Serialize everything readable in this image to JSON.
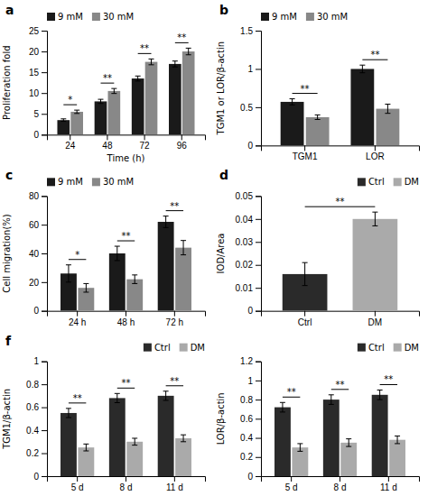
{
  "chart_data": [
    {
      "type": "bar",
      "title": "a",
      "xlabel": "Time (h)",
      "ylabel": "Proliferation fold",
      "categories": [
        "24",
        "48",
        "72",
        "96"
      ],
      "series": [
        {
          "name": "9 mM",
          "color": "#1a1a1a",
          "values": [
            3.5,
            8.0,
            13.5,
            17.0
          ],
          "errors": [
            0.3,
            0.5,
            0.6,
            0.7
          ]
        },
        {
          "name": "30 mM",
          "color": "#888888",
          "values": [
            5.5,
            10.5,
            17.5,
            20.0
          ],
          "errors": [
            0.4,
            0.6,
            0.7,
            0.8
          ]
        }
      ],
      "ylim": [
        0,
        25
      ],
      "yticks": [
        0,
        5,
        10,
        15,
        20,
        25
      ],
      "annotations": [
        "*",
        "**",
        "**",
        "**"
      ],
      "legend": "upper left"
    },
    {
      "type": "bar",
      "title": "b",
      "ylabel": "TGM1 or LOR/β-actin",
      "categories": [
        "TGM1",
        "LOR"
      ],
      "series": [
        {
          "name": "9 mM",
          "color": "#1a1a1a",
          "values": [
            0.57,
            1.0
          ],
          "errors": [
            0.04,
            0.05
          ]
        },
        {
          "name": "30 mM",
          "color": "#888888",
          "values": [
            0.37,
            0.48
          ],
          "errors": [
            0.03,
            0.06
          ]
        }
      ],
      "ylim": [
        0,
        1.5
      ],
      "yticks": [
        0,
        0.5,
        1,
        1.5
      ],
      "annotations": [
        "**",
        "**"
      ],
      "legend": "upper left"
    },
    {
      "type": "bar",
      "title": "c",
      "ylabel": "Cell migration(%)",
      "categories": [
        "24 h",
        "48 h",
        "72 h"
      ],
      "series": [
        {
          "name": "9 mM",
          "color": "#1a1a1a",
          "values": [
            26,
            40,
            62
          ],
          "errors": [
            6,
            5,
            4
          ]
        },
        {
          "name": "30 mM",
          "color": "#888888",
          "values": [
            16,
            22,
            44
          ],
          "errors": [
            3,
            3,
            5
          ]
        }
      ],
      "ylim": [
        0,
        80
      ],
      "yticks": [
        0,
        20,
        40,
        60,
        80
      ],
      "annotations": [
        "*",
        "**",
        "**"
      ],
      "legend": "upper left"
    },
    {
      "type": "bar",
      "title": "d",
      "ylabel": "IOD/Area",
      "categories": [
        "Ctrl",
        "DM"
      ],
      "values": [
        0.016,
        0.04
      ],
      "errors": [
        0.005,
        0.003
      ],
      "colors": [
        "#2a2a2a",
        "#aaaaaa"
      ],
      "ylim": [
        0,
        0.05
      ],
      "yticks": [
        0,
        0.01,
        0.02,
        0.03,
        0.04,
        0.05
      ],
      "annotations": [
        "**"
      ],
      "legend": "upper right"
    },
    {
      "type": "bar",
      "title": "f",
      "ylabel": "TGM1/β-actin",
      "categories": [
        "5 d",
        "8 d",
        "11 d"
      ],
      "series": [
        {
          "name": "Ctrl",
          "color": "#2a2a2a",
          "values": [
            0.55,
            0.68,
            0.7
          ],
          "errors": [
            0.04,
            0.04,
            0.04
          ]
        },
        {
          "name": "DM",
          "color": "#aaaaaa",
          "values": [
            0.25,
            0.3,
            0.33
          ],
          "errors": [
            0.03,
            0.03,
            0.03
          ]
        }
      ],
      "ylim": [
        0,
        1.0
      ],
      "yticks": [
        0,
        0.2,
        0.4,
        0.6,
        0.8,
        1
      ],
      "annotations": [
        "**",
        "**",
        "**"
      ],
      "legend": "upper right"
    },
    {
      "type": "bar",
      "ylabel": "LOR/β-actin",
      "categories": [
        "5 d",
        "8 d",
        "11 d"
      ],
      "series": [
        {
          "name": "Ctrl",
          "color": "#2a2a2a",
          "values": [
            0.72,
            0.8,
            0.85
          ],
          "errors": [
            0.05,
            0.05,
            0.05
          ]
        },
        {
          "name": "DM",
          "color": "#aaaaaa",
          "values": [
            0.3,
            0.35,
            0.38
          ],
          "errors": [
            0.04,
            0.04,
            0.04
          ]
        }
      ],
      "ylim": [
        0,
        1.2
      ],
      "yticks": [
        0,
        0.2,
        0.4,
        0.6,
        0.8,
        1,
        1.2
      ],
      "annotations": [
        "**",
        "**",
        "**"
      ],
      "legend": "upper right"
    }
  ]
}
